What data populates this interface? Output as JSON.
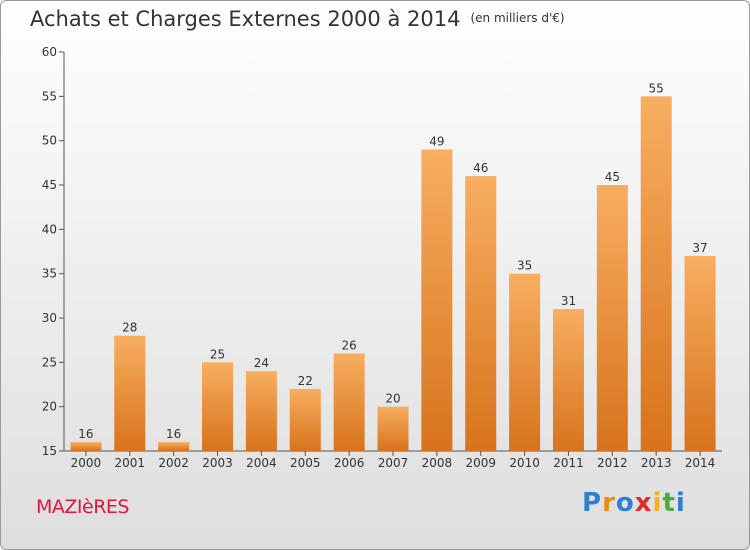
{
  "header": {
    "title": "Achats et Charges Externes 2000 à 2014",
    "unit": "(en milliers d'€)"
  },
  "footer": {
    "commune": "MAZIèRES",
    "logo": [
      "P",
      "r",
      "o",
      "x",
      "i",
      "t",
      "i"
    ]
  },
  "colors": {
    "bar_light": "#f6a95a",
    "bar_dark": "#d9731c",
    "commune": "#e0163d"
  },
  "chart_data": {
    "type": "bar",
    "title": "Achats et Charges Externes 2000 à 2014",
    "subtitle": "(en milliers d'€)",
    "xlabel": "",
    "ylabel": "",
    "categories": [
      "2000",
      "2001",
      "2002",
      "2003",
      "2004",
      "2005",
      "2006",
      "2007",
      "2008",
      "2009",
      "2010",
      "2011",
      "2012",
      "2013",
      "2014"
    ],
    "values": [
      16,
      28,
      16,
      25,
      24,
      22,
      26,
      20,
      49,
      46,
      35,
      31,
      45,
      55,
      37
    ],
    "ylim": [
      15,
      60
    ],
    "yticks": [
      15,
      20,
      25,
      30,
      35,
      40,
      45,
      50,
      55,
      60
    ],
    "grid": false,
    "data_labels": true
  }
}
